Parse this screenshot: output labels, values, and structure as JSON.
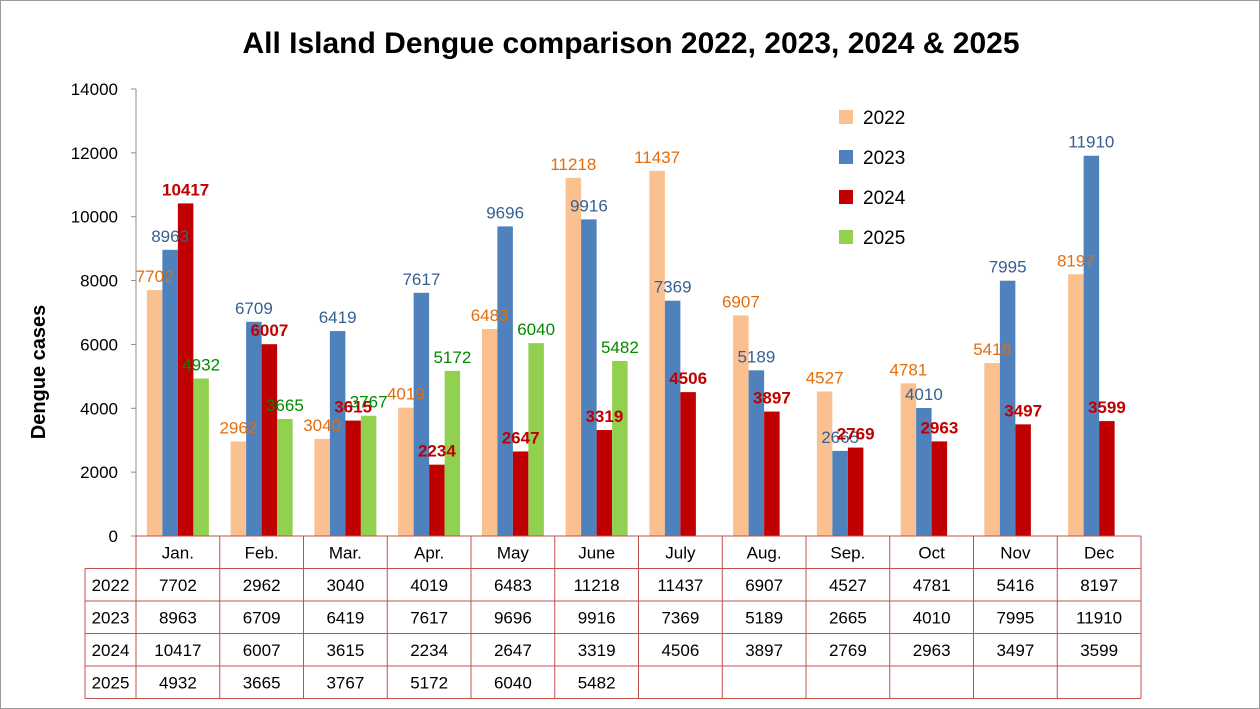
{
  "chart_data": {
    "type": "bar",
    "title": "All Island Dengue comparison 2022, 2023, 2024 & 2025",
    "xlabel": "",
    "ylabel": "Dengue cases",
    "ylim": [
      0,
      14000
    ],
    "yticks": [
      0,
      2000,
      4000,
      6000,
      8000,
      10000,
      12000,
      14000
    ],
    "categories": [
      "Jan.",
      "Feb.",
      "Mar.",
      "Apr.",
      "May",
      "June",
      "July",
      "Aug.",
      "Sep.",
      "Oct",
      "Nov",
      "Dec"
    ],
    "legend_position": "top-right",
    "series": [
      {
        "name": "2022",
        "color": "#fac090",
        "label_color": "#e46c0a",
        "label_bold": false,
        "values": [
          7702,
          2962,
          3040,
          4019,
          6483,
          11218,
          11437,
          6907,
          4527,
          4781,
          5416,
          8197
        ]
      },
      {
        "name": "2023",
        "color": "#4f81bd",
        "label_color": "#376092",
        "label_bold": false,
        "values": [
          8963,
          6709,
          6419,
          7617,
          9696,
          9916,
          7369,
          5189,
          2665,
          4010,
          7995,
          11910
        ]
      },
      {
        "name": "2024",
        "color": "#c00000",
        "label_color": "#c00000",
        "label_bold": true,
        "values": [
          10417,
          6007,
          3615,
          2234,
          2647,
          3319,
          4506,
          3897,
          2769,
          2963,
          3497,
          3599
        ]
      },
      {
        "name": "2025",
        "color": "#92d050",
        "label_color": "#008a00",
        "label_bold": false,
        "values": [
          4932,
          3665,
          3767,
          5172,
          6040,
          5482,
          null,
          null,
          null,
          null,
          null,
          null
        ]
      }
    ]
  }
}
